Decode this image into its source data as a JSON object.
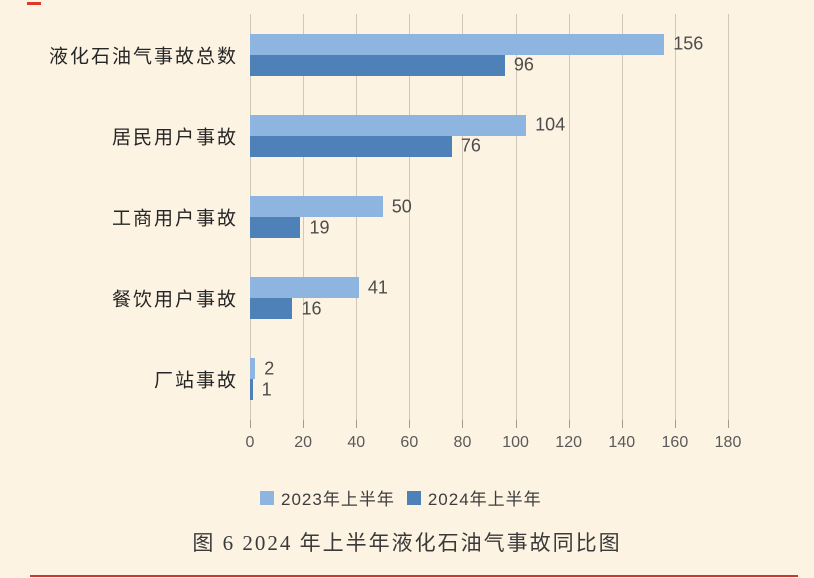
{
  "page": {
    "background": "#fdf3e2",
    "border_mark_color": "#e0372b",
    "bottom_line_color": "#c43b2e"
  },
  "chart_data": {
    "type": "bar",
    "orientation": "horizontal",
    "title": "",
    "caption": "图 6 2024 年上半年液化石油气事故同比图",
    "categories": [
      "液化石油气事故总数",
      "居民用户事故",
      "工商用户事故",
      "餐饮用户事故",
      "厂站事故"
    ],
    "series": [
      {
        "name": "2023年上半年",
        "color": "#8eb4e0",
        "values": [
          156,
          104,
          50,
          41,
          2
        ]
      },
      {
        "name": "2024年上半年",
        "color": "#4d81b8",
        "values": [
          96,
          76,
          19,
          16,
          1
        ]
      }
    ],
    "xlim": [
      0,
      180
    ],
    "xticks": [
      0,
      20,
      40,
      60,
      80,
      100,
      120,
      140,
      160,
      180
    ],
    "grid": true,
    "value_labels": true,
    "legend_position": "bottom"
  }
}
